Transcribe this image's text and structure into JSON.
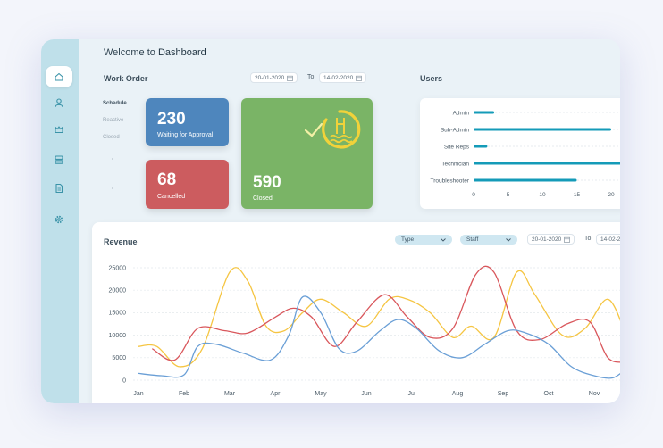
{
  "welcome": {
    "prefix": "Welcome to",
    "name": "Dashboard"
  },
  "sidebar": {
    "items": [
      {
        "icon": "home-icon",
        "active": true
      },
      {
        "icon": "user-icon",
        "active": false
      },
      {
        "icon": "crown-icon",
        "active": false
      },
      {
        "icon": "server-icon",
        "active": false
      },
      {
        "icon": "document-icon",
        "active": false
      },
      {
        "icon": "gear-icon",
        "active": false
      }
    ]
  },
  "work_order": {
    "title": "Work Order",
    "from_date": "20-01-2020",
    "to_label": "To",
    "to_date": "14-02-2020",
    "tabs": [
      "Schedule",
      "Reactive",
      "Closed"
    ],
    "cards": [
      {
        "value": "230",
        "label": "Waiting for Approval",
        "color": "#4e86bd"
      },
      {
        "value": "68",
        "label": "Cancelled",
        "color": "#cc5c5f"
      },
      {
        "value": "590",
        "label": "Closed",
        "color": "#7ab466"
      }
    ]
  },
  "users": {
    "title": "Users",
    "chart_data": {
      "type": "bar",
      "orientation": "horizontal",
      "categories": [
        "Admin",
        "Sub-Admin",
        "Site Reps",
        "Technician",
        "Troubleshooter"
      ],
      "values": [
        3,
        20,
        2,
        22,
        15
      ],
      "xticks": [
        "0",
        "5",
        "10",
        "15",
        "20"
      ],
      "xlim": [
        0,
        22
      ],
      "color": "#149bb8"
    }
  },
  "revenue": {
    "title": "Revenue",
    "type_select": "Type",
    "staff_select": "Staff",
    "from_date": "20-01-2020",
    "to_label": "To",
    "to_date": "14-02-2",
    "chart_data": {
      "type": "line",
      "categories": [
        "Jan",
        "Feb",
        "Mar",
        "Apr",
        "May",
        "Jun",
        "Jul",
        "Aug",
        "Sep",
        "Oct",
        "Nov"
      ],
      "yticks": [
        "25000",
        "20000",
        "15000",
        "10000",
        "5000",
        "0"
      ],
      "ylim": [
        0,
        25000
      ],
      "series": [
        {
          "color": "#f5c542",
          "points": [
            [
              0,
              7500
            ],
            [
              0.4,
              7500
            ],
            [
              0.9,
              3000
            ],
            [
              1.4,
              7000
            ],
            [
              2,
              24000
            ],
            [
              2.4,
              22000
            ],
            [
              2.8,
              12000
            ],
            [
              3.2,
              11000
            ],
            [
              3.6,
              15000
            ],
            [
              4,
              18000
            ],
            [
              4.5,
              15000
            ],
            [
              5,
              12000
            ],
            [
              5.5,
              18000
            ],
            [
              5.9,
              18000
            ],
            [
              6.4,
              15000
            ],
            [
              6.9,
              9500
            ],
            [
              7.3,
              12000
            ],
            [
              7.8,
              9500
            ],
            [
              8.3,
              24000
            ],
            [
              8.7,
              19000
            ],
            [
              9.3,
              10000
            ],
            [
              9.8,
              11500
            ],
            [
              10.3,
              18000
            ],
            [
              10.7,
              10000
            ]
          ]
        },
        {
          "color": "#d9575c",
          "points": [
            [
              0.3,
              7000
            ],
            [
              0.8,
              4500
            ],
            [
              1.3,
              11500
            ],
            [
              1.9,
              11000
            ],
            [
              2.4,
              10500
            ],
            [
              3,
              14000
            ],
            [
              3.4,
              16000
            ],
            [
              3.8,
              14000
            ],
            [
              4.3,
              7500
            ],
            [
              4.8,
              13000
            ],
            [
              5.4,
              19000
            ],
            [
              5.9,
              14000
            ],
            [
              6.4,
              9500
            ],
            [
              6.9,
              11500
            ],
            [
              7.4,
              23500
            ],
            [
              7.8,
              24000
            ],
            [
              8.3,
              11000
            ],
            [
              8.8,
              9000
            ],
            [
              9.4,
              12500
            ],
            [
              9.9,
              13000
            ],
            [
              10.3,
              5000
            ],
            [
              10.7,
              4000
            ]
          ]
        },
        {
          "color": "#6a9fd6",
          "points": [
            [
              0,
              1500
            ],
            [
              0.5,
              1000
            ],
            [
              1,
              1200
            ],
            [
              1.3,
              7500
            ],
            [
              1.7,
              8000
            ],
            [
              2.3,
              6000
            ],
            [
              2.9,
              4500
            ],
            [
              3.3,
              10000
            ],
            [
              3.6,
              18500
            ],
            [
              4,
              15000
            ],
            [
              4.4,
              7000
            ],
            [
              4.8,
              6500
            ],
            [
              5.3,
              11000
            ],
            [
              5.7,
              13500
            ],
            [
              6.1,
              11500
            ],
            [
              6.6,
              6500
            ],
            [
              7.1,
              5000
            ],
            [
              7.6,
              8000
            ],
            [
              8.1,
              11000
            ],
            [
              8.5,
              10500
            ],
            [
              9,
              8000
            ],
            [
              9.5,
              3000
            ],
            [
              10,
              1000
            ],
            [
              10.4,
              500
            ],
            [
              10.7,
              2500
            ]
          ]
        }
      ]
    }
  }
}
